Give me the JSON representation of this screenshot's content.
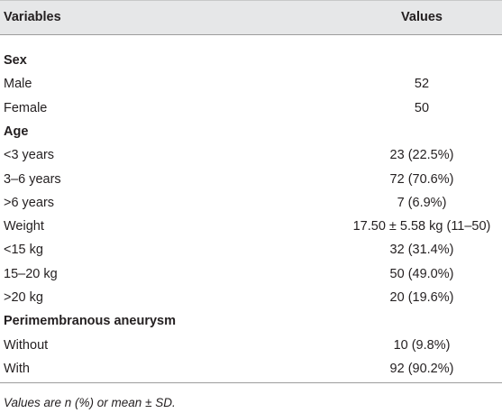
{
  "table": {
    "header": [
      "Variables",
      "Values"
    ],
    "rows": [
      [
        "Sex"
      ],
      [
        "Male",
        "52"
      ],
      [
        "Female",
        "50"
      ],
      [
        "Age"
      ],
      [
        "<3 years",
        "23 (22.5%)"
      ],
      [
        "3–6 years",
        "72 (70.6%)"
      ],
      [
        ">6 years",
        "7 (6.9%)"
      ],
      [
        "Weight",
        "17.50 ± 5.58 kg (11–50)"
      ],
      [
        "<15 kg",
        "32 (31.4%)"
      ],
      [
        "15–20 kg",
        "50 (49.0%)"
      ],
      [
        ">20 kg",
        "20 (19.6%)"
      ],
      [
        "Perimembranous aneurysm"
      ],
      [
        "Without",
        "10 (9.8%)"
      ],
      [
        "With",
        "92 (90.2%)"
      ]
    ],
    "footnote": "Values are n (%) or mean ± SD."
  }
}
